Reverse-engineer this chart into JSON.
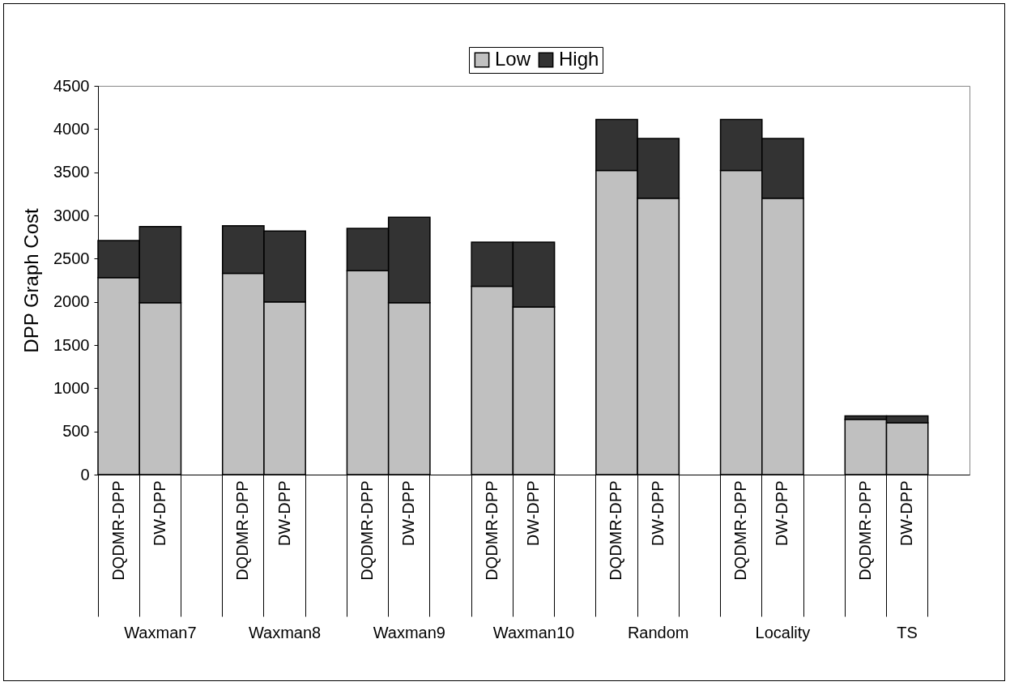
{
  "chart_data": {
    "type": "bar",
    "stacked": true,
    "ylabel": "DPP Graph Cost",
    "legend": "top",
    "categories": [
      "DQDMR-DPP",
      "DW-DPP",
      null,
      "DQDMR-DPP",
      "DW-DPP",
      null,
      "DQDMR-DPP",
      "DW-DPP",
      null,
      "DQDMR-DPP",
      "DW-DPP",
      null,
      "DQDMR-DPP",
      "DW-DPP",
      null,
      "DQDMR-DPP",
      "DW-DPP",
      null,
      "DQDMR-DPP",
      "DW-DPP",
      null
    ],
    "series": [
      {
        "name": "Low",
        "color": "#c0c0c0",
        "values": [
          2280,
          1990,
          null,
          2330,
          2000,
          null,
          2360,
          1990,
          null,
          2180,
          1940,
          null,
          3520,
          3200,
          null,
          3520,
          3200,
          null,
          640,
          600,
          null
        ]
      },
      {
        "name": "High",
        "color": "#333333",
        "values": [
          430,
          880,
          null,
          550,
          820,
          null,
          490,
          990,
          null,
          510,
          750,
          null,
          590,
          690,
          null,
          590,
          690,
          null,
          40,
          80,
          null
        ]
      }
    ],
    "ylim": [
      0,
      4500
    ],
    "yticks": [
      0,
      500,
      1000,
      1500,
      2000,
      2500,
      3000,
      3500,
      4000,
      4500
    ],
    "annotations": [
      "Waxman7",
      "Waxman8",
      "Waxman9",
      "Waxman10",
      "Random",
      "Locality",
      "TS"
    ]
  }
}
